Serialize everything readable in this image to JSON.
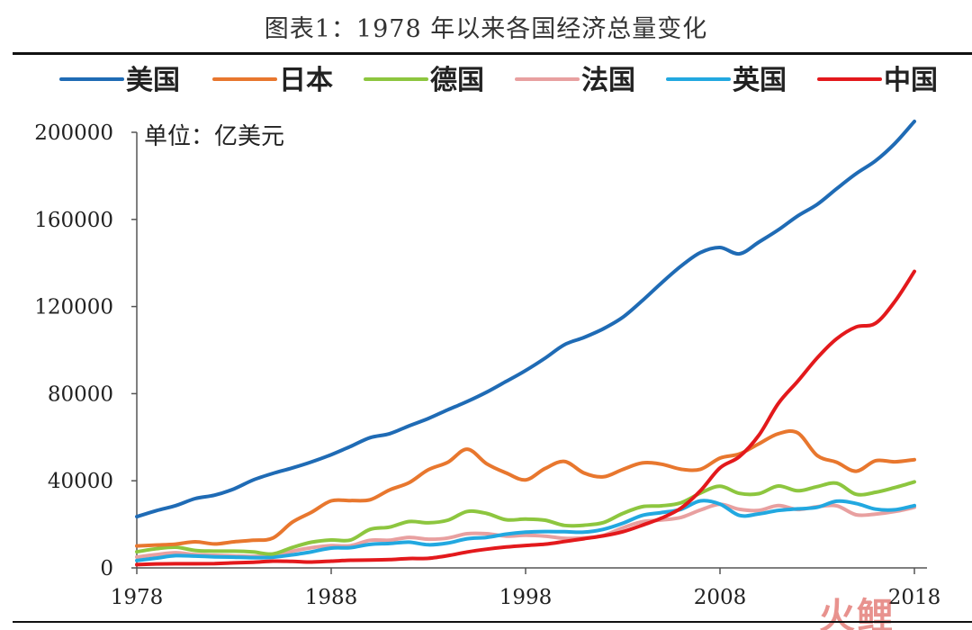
{
  "page": {
    "title": "图表1：1978 年以来各国经济总量变化",
    "watermark": "火鲤"
  },
  "chart_data": {
    "type": "line",
    "title": "图表1：1978 年以来各国经济总量变化",
    "ylabel": "单位：亿美元",
    "xlabel": "",
    "x": [
      1978,
      1979,
      1980,
      1981,
      1982,
      1983,
      1984,
      1985,
      1986,
      1987,
      1988,
      1989,
      1990,
      1991,
      1992,
      1993,
      1994,
      1995,
      1996,
      1997,
      1998,
      1999,
      2000,
      2001,
      2002,
      2003,
      2004,
      2005,
      2006,
      2007,
      2008,
      2009,
      2010,
      2011,
      2012,
      2013,
      2014,
      2015,
      2016,
      2017,
      2018
    ],
    "xlim": [
      1978,
      2018
    ],
    "ylim": [
      0,
      200000
    ],
    "xticks": [
      1978,
      1988,
      1998,
      2008,
      2018
    ],
    "yticks": [
      0,
      40000,
      80000,
      120000,
      160000,
      200000
    ],
    "legend_position": "top",
    "grid": false,
    "series": [
      {
        "name": "美国",
        "color": "#1f6bb5",
        "values": [
          23500,
          26300,
          28600,
          31800,
          33400,
          36300,
          40400,
          43400,
          45900,
          48700,
          52000,
          55800,
          59800,
          61600,
          65200,
          68600,
          72600,
          76400,
          80700,
          85600,
          90600,
          96300,
          102500,
          105800,
          109800,
          115100,
          122700,
          130900,
          138600,
          144800,
          147100,
          144200,
          149600,
          155200,
          161600,
          166900,
          174100,
          181000,
          186900,
          194900,
          205000
        ]
      },
      {
        "name": "日本",
        "color": "#e8772e",
        "values": [
          10100,
          10500,
          10900,
          12000,
          11000,
          12000,
          12700,
          13700,
          21000,
          25600,
          30800,
          30900,
          31300,
          35800,
          39100,
          45100,
          48500,
          54500,
          47800,
          43600,
          40400,
          45600,
          48900,
          43600,
          41800,
          45200,
          48200,
          47600,
          45300,
          45300,
          50400,
          52300,
          57000,
          61600,
          62000,
          51600,
          48500,
          44400,
          49200,
          48700,
          49700
        ]
      },
      {
        "name": "德国",
        "color": "#8dc63f",
        "values": [
          7400,
          8800,
          9500,
          8000,
          7700,
          7700,
          7300,
          6400,
          9400,
          11800,
          12800,
          12800,
          17700,
          18700,
          21300,
          20700,
          21900,
          25900,
          25000,
          22100,
          22400,
          21900,
          19500,
          19600,
          20800,
          25000,
          28100,
          28500,
          29900,
          34400,
          37500,
          34200,
          34100,
          37600,
          35400,
          37300,
          38900,
          33800,
          34700,
          36900,
          39500
        ]
      },
      {
        "name": "法国",
        "color": "#e8a0a0",
        "values": [
          5000,
          6100,
          7000,
          6100,
          5800,
          5500,
          5300,
          5500,
          7700,
          9300,
          10200,
          10200,
          12700,
          12700,
          14000,
          13200,
          13700,
          15700,
          15700,
          14600,
          15000,
          14600,
          13600,
          13800,
          14900,
          18400,
          21200,
          22000,
          23200,
          26600,
          29200,
          26900,
          26400,
          28600,
          26800,
          28100,
          28500,
          24400,
          24700,
          25900,
          27800
        ]
      },
      {
        "name": "英国",
        "color": "#22a8e0",
        "values": [
          3400,
          4500,
          5600,
          5400,
          5100,
          4900,
          4700,
          4900,
          6000,
          7400,
          9100,
          9300,
          10800,
          11200,
          11800,
          10600,
          11400,
          13400,
          14000,
          15500,
          16400,
          16700,
          16600,
          16400,
          17700,
          20500,
          24100,
          25400,
          26900,
          30800,
          29300,
          24100,
          24800,
          26400,
          27100,
          27800,
          30600,
          29600,
          27000,
          26700,
          28600
        ]
      },
      {
        "name": "中国",
        "color": "#e3191c",
        "values": [
          1500,
          1800,
          1900,
          1900,
          2000,
          2300,
          2600,
          3100,
          3000,
          2700,
          3100,
          3500,
          3600,
          3800,
          4300,
          4400,
          5600,
          7300,
          8600,
          9600,
          10300,
          10900,
          12100,
          13400,
          14700,
          16600,
          19600,
          22900,
          27500,
          35500,
          45900,
          51100,
          60900,
          75500,
          85700,
          96400,
          105200,
          110600,
          112300,
          122400,
          136100
        ]
      }
    ]
  }
}
